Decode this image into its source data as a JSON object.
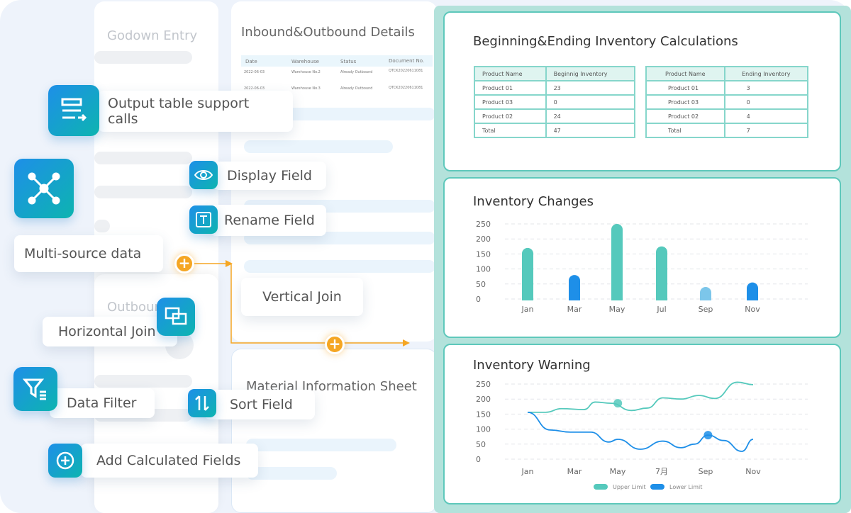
{
  "left": {
    "godown_title": "Godown Entry",
    "outbound_title": "Outbound",
    "details_title": "Inbound&Outbound Details",
    "details_headers": [
      "Date",
      "Warehouse",
      "Status",
      "Document No."
    ],
    "details_rows": [
      [
        "2022-06-03",
        "Warehouse No.2",
        "Already Outbound",
        "QTCK20220611081"
      ],
      [
        "2022-06-03",
        "Warehouse No.3",
        "Already Outbound",
        "QTCK20220611081"
      ]
    ],
    "material_title": "Material Information Sheet"
  },
  "features": {
    "output_table": "Output table support calls",
    "display_field": "Display Field",
    "rename_field": "Rename Field",
    "multi_source": "Multi-source data",
    "vertical_join": "Vertical Join",
    "horizontal_join": "Horizontal Join",
    "data_filter": "Data Filter",
    "sort_field": "Sort Field",
    "add_calculated": "Add Calculated Fields"
  },
  "colors": {
    "accent": "#1e8fe8",
    "teal": "#55c9bc",
    "orange": "#f5a623"
  },
  "inventory_calc": {
    "title": "Beginning&Ending Inventory Calculations",
    "beginning": {
      "headers": [
        "Product Name",
        "Beginnig Inventory"
      ],
      "rows": [
        [
          "Product 01",
          "23"
        ],
        [
          "Product 03",
          "0"
        ],
        [
          "Product 02",
          "24"
        ],
        [
          "Total",
          "47"
        ]
      ]
    },
    "ending": {
      "headers": [
        "Product Name",
        "Ending Inventory"
      ],
      "rows": [
        [
          "Product 01",
          "3"
        ],
        [
          "Product 03",
          "0"
        ],
        [
          "Product 02",
          "4"
        ],
        [
          "Total",
          "7"
        ]
      ]
    }
  },
  "chart_data": [
    {
      "type": "bar",
      "title": "Inventory Changes",
      "categories": [
        "Jan",
        "Mar",
        "May",
        "Jul",
        "Sep",
        "Nov"
      ],
      "values": [
        170,
        80,
        250,
        175,
        40,
        55
      ],
      "colors": [
        "#55c9bc",
        "#1e8fe8",
        "#55c9bc",
        "#55c9bc",
        "#7cc6ea",
        "#1e8fe8"
      ],
      "ylim": [
        0,
        250
      ],
      "yticks": [
        0,
        50,
        100,
        150,
        200,
        250
      ],
      "grid": true
    },
    {
      "type": "line",
      "title": "Inventory Warning",
      "categories": [
        "Jan",
        "Mar",
        "May",
        "7月",
        "Sep",
        "Nov"
      ],
      "ylim": [
        0,
        250
      ],
      "yticks": [
        0,
        50,
        100,
        150,
        200,
        250
      ],
      "grid": true,
      "legend": "bottom",
      "series": [
        {
          "name": "Upper Limit",
          "color": "#55c9bc",
          "x": [
            1,
            1.8,
            2.5,
            3.5,
            4,
            4.7,
            5.6,
            6.3,
            7,
            7.8,
            8.6,
            9.3,
            10.3,
            11
          ],
          "y": [
            156,
            156,
            168,
            165,
            190,
            186,
            162,
            170,
            204,
            200,
            212,
            202,
            256,
            248
          ],
          "marker": {
            "x": 5,
            "y": 186
          }
        },
        {
          "name": "Lower Limit",
          "color": "#1e8fe8",
          "x": [
            1,
            2,
            2.9,
            3.8,
            4.6,
            5,
            6,
            7,
            7.8,
            8.4,
            9,
            9.7,
            10.5,
            11
          ],
          "y": [
            156,
            97,
            90,
            90,
            57,
            66,
            33,
            60,
            38,
            50,
            80,
            62,
            26,
            66
          ],
          "marker": {
            "x": 9,
            "y": 80
          }
        }
      ]
    }
  ]
}
